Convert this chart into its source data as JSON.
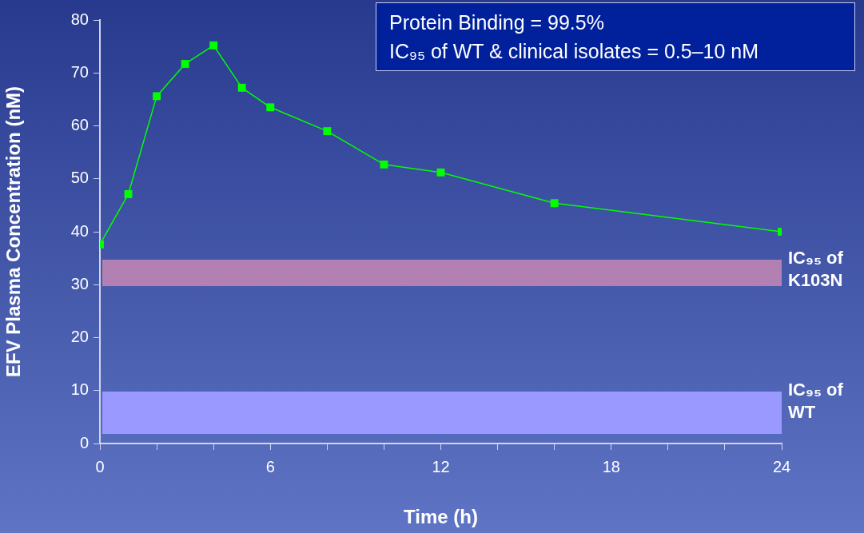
{
  "chart_data": {
    "type": "line",
    "xlabel": "Time (h)",
    "ylabel": "EFV Plasma Concentration (nM)",
    "x": [
      0,
      1,
      2,
      3,
      4,
      5,
      6,
      8,
      10,
      12,
      16,
      24
    ],
    "series": [
      {
        "color": "#00ff00",
        "values": [
          37.6,
          47.1,
          65.6,
          71.7,
          75.2,
          67.2,
          63.5,
          59.0,
          52.7,
          51.2,
          45.4,
          40.0
        ]
      }
    ],
    "xlim": [
      0,
      24
    ],
    "xticks": [
      0,
      {
        "value": 2,
        "label": null
      },
      {
        "value": 4,
        "label": null
      },
      6,
      {
        "value": 8,
        "label": null
      },
      {
        "value": 10,
        "label": null
      },
      12,
      {
        "value": 14,
        "label": null
      },
      {
        "value": 16,
        "label": null
      },
      18,
      {
        "value": 20,
        "label": null
      },
      {
        "value": 22,
        "label": null
      },
      24
    ],
    "ylim": [
      0,
      80
    ],
    "yticks": [
      0,
      10,
      20,
      30,
      40,
      50,
      60,
      70,
      80
    ],
    "bands": [
      {
        "axis": "y",
        "from": 29.7,
        "to": 34.7,
        "label": "IC₉₅ of K103N",
        "color": "#b380b3"
      },
      {
        "axis": "y",
        "from": 1.8,
        "to": 9.8,
        "label": "IC₉₅ of WT",
        "color": "#9999ff"
      }
    ],
    "annotations": [
      "Protein  Binding = 99.5%",
      "IC₉₅ of WT & clinical isolates = 0.5–10 nM"
    ],
    "marker": "square",
    "line_style": "solid",
    "grid": false,
    "legend": false
  }
}
